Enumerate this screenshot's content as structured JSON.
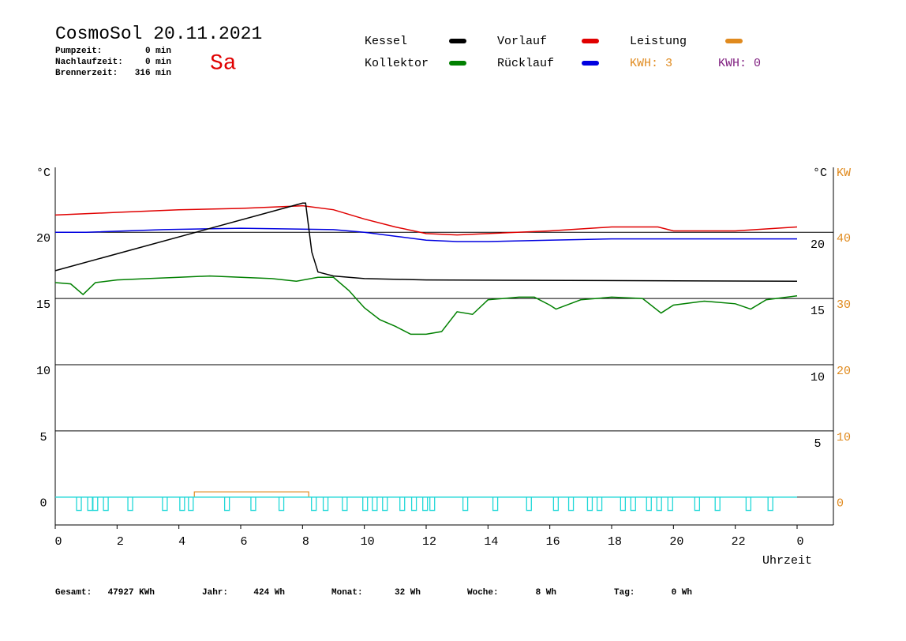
{
  "chart_data": {
    "type": "line",
    "title": "CosmoSol 20.11.2021",
    "day": "Sa",
    "info": [
      [
        "Pumpzeit:",
        "0 min"
      ],
      [
        "Nachlaufzeit:",
        "0 min"
      ],
      [
        "Brennerzeit:",
        "316 min"
      ]
    ],
    "kwh": [
      {
        "label": "KWH: 3",
        "color": "#e08a1e"
      },
      {
        "label": "KWH: 0",
        "color": "#802080"
      }
    ],
    "ylabel": "°C",
    "y2label": "KW",
    "xlabel": "Uhrzeit",
    "xlim": [
      0,
      24
    ],
    "xticks": [
      0,
      2,
      4,
      6,
      8,
      10,
      12,
      14,
      16,
      18,
      20,
      22,
      {
        "value": 24,
        "label": "0"
      }
    ],
    "ylim": [
      -2.1,
      24.9
    ],
    "yticks": [
      0,
      5,
      10,
      15,
      20
    ],
    "y2lim": [
      -4.2,
      49.8
    ],
    "y2ticks": [
      0,
      10,
      20,
      30,
      40
    ],
    "grid": true,
    "series": [
      {
        "name": "Kessel",
        "color": "#000000",
        "x": [
          0,
          8,
          8.1,
          8.3,
          8.5,
          9,
          10,
          12,
          24
        ],
        "values": [
          17.1,
          22.2,
          22.2,
          18.5,
          17.0,
          16.7,
          16.5,
          16.4,
          16.3
        ]
      },
      {
        "name": "Kollektor",
        "color": "#008000",
        "x": [
          0,
          0.5,
          0.9,
          1.3,
          2,
          3,
          4,
          5,
          6,
          7,
          7.8,
          8.5,
          9,
          9.5,
          10,
          10.5,
          11,
          11.5,
          12,
          12.5,
          13,
          13.5,
          14,
          15,
          15.5,
          16,
          16.2,
          17,
          18,
          19,
          19.6,
          20,
          21,
          22,
          22.5,
          23,
          24
        ],
        "values": [
          16.2,
          16.1,
          15.3,
          16.2,
          16.4,
          16.5,
          16.6,
          16.7,
          16.6,
          16.5,
          16.3,
          16.6,
          16.6,
          15.6,
          14.3,
          13.4,
          12.9,
          12.3,
          12.3,
          12.5,
          14.0,
          13.8,
          14.9,
          15.1,
          15.1,
          14.5,
          14.2,
          14.9,
          15.1,
          15.0,
          13.9,
          14.5,
          14.8,
          14.6,
          14.2,
          14.9,
          15.2
        ]
      },
      {
        "name": "Vorlauf",
        "color": "#e00000",
        "x": [
          0,
          2,
          4,
          6,
          8,
          9,
          10,
          11,
          12,
          13,
          14,
          16,
          18,
          19.5,
          20,
          22,
          24
        ],
        "values": [
          21.3,
          21.5,
          21.7,
          21.8,
          22.0,
          21.7,
          21.0,
          20.4,
          19.9,
          19.8,
          19.9,
          20.1,
          20.4,
          20.4,
          20.1,
          20.1,
          20.4
        ]
      },
      {
        "name": "Rücklauf",
        "color": "#0000e0",
        "x": [
          0,
          1,
          3.5,
          6,
          9,
          10,
          11,
          12,
          13,
          14,
          16,
          18,
          20,
          22,
          24
        ],
        "values": [
          20.0,
          20.0,
          20.2,
          20.3,
          20.2,
          20.0,
          19.7,
          19.4,
          19.3,
          19.3,
          19.4,
          19.5,
          19.5,
          19.5,
          19.5
        ]
      },
      {
        "name": "Leistung",
        "color": "#e08a1e",
        "axis": "y2",
        "x": [
          0,
          4.5,
          4.5,
          8.2,
          8.2,
          24
        ],
        "values": [
          0,
          0,
          0.8,
          0.8,
          0,
          0
        ]
      },
      {
        "type": "pulse",
        "color": "#20d8d8",
        "x": [
          0.69,
          1.05,
          1.22,
          1.56,
          2.35,
          3.47,
          4.03,
          4.31,
          5.48,
          6.33,
          7.24,
          8.29,
          8.67,
          9.29,
          9.95,
          10.26,
          10.59,
          11.15,
          11.53,
          11.89,
          12.12,
          13.19,
          14.16,
          15.25,
          16.12,
          16.61,
          17.22,
          17.53,
          18.29,
          18.62,
          19.13,
          19.46,
          19.82,
          20.69,
          21.35,
          22.35,
          23.06
        ],
        "values": [
          -1,
          -1,
          -1,
          -1,
          -1,
          -1,
          -1,
          -1,
          -1,
          -1,
          -1,
          -1,
          -1,
          -1,
          -1,
          -1,
          -1,
          -1,
          -1,
          -1,
          -1,
          -1,
          -1,
          -1,
          -1,
          -1,
          -1,
          -1,
          -1,
          -1,
          -1,
          -1,
          -1,
          -1,
          -1,
          -1,
          -1
        ]
      }
    ]
  },
  "footer": [
    [
      "Gesamt:",
      "47927 KWh"
    ],
    [
      "Jahr:",
      "424 Wh"
    ],
    [
      "Monat:",
      "32 Wh"
    ],
    [
      "Woche:",
      "8 Wh"
    ],
    [
      "Tag:",
      "0 Wh"
    ]
  ]
}
